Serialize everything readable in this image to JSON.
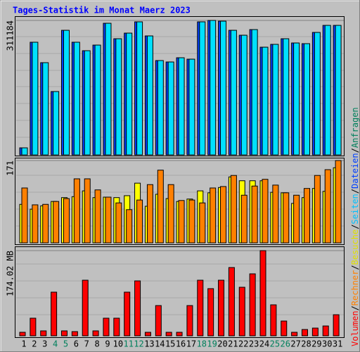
{
  "title": "Tages-Statistik im Monat Maerz 2023",
  "legend": {
    "separator": "/",
    "items": [
      {
        "name": "Volumen",
        "color": "#ff0000"
      },
      {
        "name": "Rechner",
        "color": "#ff8000"
      },
      {
        "name": "Besuche",
        "color": "#e0e000"
      },
      {
        "name": "Seiten",
        "color": "#00c0ff"
      },
      {
        "name": "Dateien",
        "color": "#0040ff"
      },
      {
        "name": "Anfragen",
        "color": "#00805c"
      }
    ]
  },
  "chart_data": [
    {
      "type": "bar",
      "ylim": [
        0,
        311184
      ],
      "yticks": [
        311184
      ],
      "series": [
        {
          "color": "#0040ff",
          "values": [
            16292,
            260700,
            213400,
            146600,
            288300,
            260700,
            241100,
            254100,
            304600,
            268800,
            281800,
            307900,
            275300,
            218300,
            215000,
            224800,
            221500,
            307900,
            311184,
            309500,
            288300,
            276900,
            290000,
            249200,
            255800,
            268800,
            259000,
            257400,
            283400,
            299700,
            299700
          ]
        },
        {
          "color": "#00e0ff",
          "values": [
            16292,
            260700,
            213400,
            146600,
            288300,
            260700,
            241100,
            254100,
            304600,
            268800,
            281800,
            307900,
            275300,
            218300,
            215000,
            224800,
            221500,
            307900,
            311184,
            309500,
            288300,
            276900,
            290000,
            249200,
            255800,
            268800,
            259000,
            257400,
            283400,
            299700,
            299700
          ]
        }
      ]
    },
    {
      "type": "bar",
      "ylim": [
        0,
        171
      ],
      "yticks": [
        171
      ],
      "series": [
        {
          "color": "#ffff00",
          "values": [
            80,
            70,
            77,
            86,
            94,
            96,
            108,
            94,
            95,
            94,
            98,
            124,
            76,
            101,
            92,
            86,
            91,
            108,
            104,
            115,
            137,
            129,
            129,
            129,
            105,
            104,
            82,
            94,
            113,
            107,
            156
          ]
        },
        {
          "color": "#ff8000",
          "values": [
            114,
            79,
            80,
            86,
            92,
            133,
            133,
            110,
            95,
            83,
            69,
            89,
            121,
            151,
            121,
            88,
            89,
            83,
            114,
            117,
            140,
            99,
            118,
            132,
            120,
            104,
            99,
            113,
            140,
            152,
            171
          ]
        }
      ]
    },
    {
      "type": "bar",
      "ylim": [
        0,
        174.02
      ],
      "yticks": [
        {
          "value": 174.02,
          "label": "174.02 MB"
        }
      ],
      "categories": [
        "1",
        "2",
        "3",
        "4",
        "5",
        "6",
        "7",
        "8",
        "9",
        "10",
        "11",
        "12",
        "13",
        "14",
        "15",
        "16",
        "17",
        "18",
        "19",
        "20",
        "21",
        "22",
        "23",
        "24",
        "25",
        "26",
        "27",
        "28",
        "29",
        "30",
        "31"
      ],
      "category_colors": [
        "#000000",
        "#000000",
        "#000000",
        "#00805c",
        "#00805c",
        "#000000",
        "#000000",
        "#000000",
        "#000000",
        "#000000",
        "#00805c",
        "#00805c",
        "#000000",
        "#000000",
        "#000000",
        "#000000",
        "#000000",
        "#00805c",
        "#00805c",
        "#000000",
        "#000000",
        "#000000",
        "#000000",
        "#000000",
        "#00805c",
        "#00805c",
        "#000000",
        "#000000",
        "#000000",
        "#000000",
        "#000000"
      ],
      "series": [
        {
          "color": "#ff0000",
          "values": [
            7.2,
            36.0,
            10.1,
            89.2,
            10.1,
            8.6,
            113.6,
            10.1,
            36.0,
            36.0,
            89.2,
            112.2,
            7.2,
            61.8,
            7.2,
            7.2,
            61.8,
            113.6,
            96.4,
            113.6,
            139.5,
            99.2,
            126.6,
            174.02,
            63.3,
            30.2,
            7.2,
            12.9,
            15.8,
            20.1,
            43.1
          ]
        }
      ]
    }
  ]
}
